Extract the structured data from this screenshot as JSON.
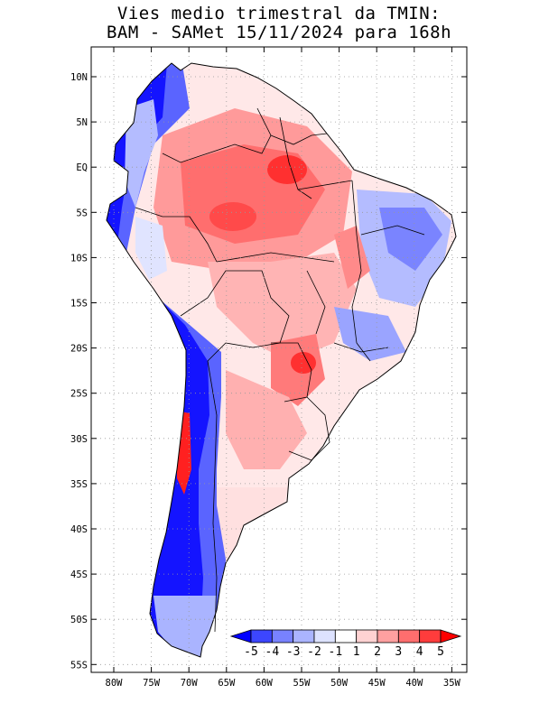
{
  "title_line1": "Vies medio trimestral da TMIN:",
  "title_line2": "BAM - SAMet 15/11/2024  para 168h",
  "lon_labels": [
    "80W",
    "75W",
    "70W",
    "65W",
    "60W",
    "55W",
    "50W",
    "45W",
    "40W",
    "35W"
  ],
  "lat_labels": [
    "10N",
    "5N",
    "EQ",
    "5S",
    "10S",
    "15S",
    "20S",
    "25S",
    "30S",
    "35S",
    "40S",
    "45S",
    "50S",
    "55S"
  ],
  "colorbar": {
    "labels": [
      "-5",
      "-4",
      "-3",
      "-2",
      "-1",
      "1",
      "2",
      "3",
      "4",
      "5"
    ],
    "colors": [
      "#0000ff",
      "#3c46ff",
      "#7882ff",
      "#aab4ff",
      "#dde2ff",
      "#ffffff",
      "#ffd2d2",
      "#ffa0a0",
      "#ff6e6e",
      "#ff3c3c",
      "#ff0000"
    ]
  },
  "palette": {
    "strong_blue": "#1414ff",
    "blue": "#5a64ff",
    "light_blue": "#b4bcff",
    "pale_blue": "#e0e4ff",
    "pale_red": "#ffd4d4",
    "light_red": "#ffaaaa",
    "red": "#ff7070",
    "strong_red": "#ff3030",
    "grid": "#999999",
    "border": "#000000"
  }
}
